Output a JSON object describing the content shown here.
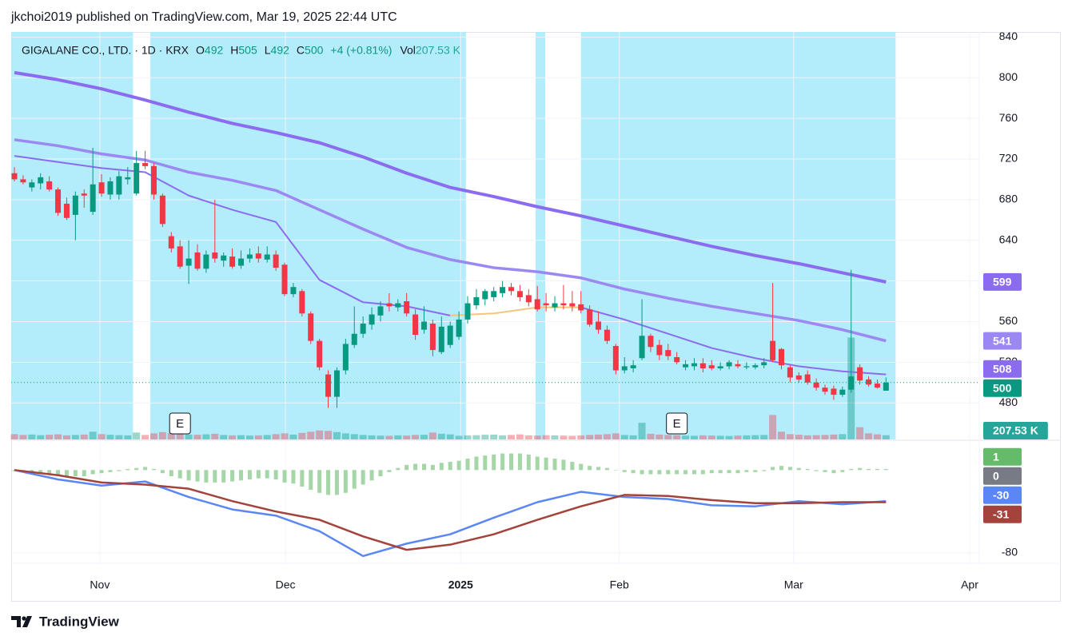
{
  "header": {
    "publisher": "jkchoi2019 published on TradingView.com, Mar 19, 2025 22:44 UTC"
  },
  "chart_data": {
    "type": "candlestick",
    "symbol": "GIGALANE CO., LTD. · 1D · KRX",
    "legend_labels": {
      "open": "O",
      "high": "H",
      "low": "L",
      "close": "C",
      "volume": "Vol"
    },
    "change_label": "+4 (+0.81%)",
    "xlim": [
      -0.37,
      110.7
    ],
    "xticks": [
      {
        "value": 9.8,
        "label": "Nov"
      },
      {
        "value": 31.1,
        "label": "Dec"
      },
      {
        "value": 51.2,
        "label": "2025"
      },
      {
        "value": 69.4,
        "label": "Feb"
      },
      {
        "value": 89.4,
        "label": "Mar"
      },
      {
        "value": 109.6,
        "label": "Apr"
      }
    ],
    "ylim": [
      444,
      845
    ],
    "yticks": [
      480,
      520,
      560,
      600,
      640,
      680,
      720,
      760,
      800,
      840
    ],
    "grid": true,
    "up_color": "#089981",
    "down_color": "#f23645",
    "open": [
      706,
      700,
      692,
      696,
      698,
      690,
      676,
      665,
      686,
      668,
      697,
      685,
      685,
      700,
      686,
      716,
      713,
      684,
      644,
      634,
      615,
      628,
      612,
      628,
      620,
      624,
      615,
      622,
      627,
      621,
      626,
      616,
      587,
      590,
      568,
      541,
      508,
      486,
      512,
      537,
      548,
      557,
      566,
      578,
      574,
      580,
      567,
      552,
      558,
      530,
      537,
      545,
      562,
      576,
      582,
      584,
      588,
      594,
      590,
      586,
      582,
      578,
      574,
      578,
      578,
      577,
      572,
      560,
      552,
      536,
      512,
      514,
      524,
      546,
      537,
      532,
      525,
      515,
      516,
      519,
      517,
      514,
      516,
      518,
      515,
      515,
      517,
      541,
      533,
      515,
      507,
      508,
      500,
      495,
      494,
      488,
      493,
      515,
      503,
      499,
      492
    ],
    "high": [
      712,
      704,
      700,
      706,
      703,
      692,
      682,
      688,
      690,
      731,
      705,
      702,
      708,
      712,
      728,
      728,
      716,
      686,
      648,
      640,
      640,
      636,
      630,
      680,
      628,
      632,
      630,
      632,
      634,
      634,
      630,
      618,
      598,
      592,
      570,
      543,
      512,
      515,
      543,
      575,
      565,
      574,
      580,
      588,
      582,
      588,
      572,
      575,
      562,
      565,
      560,
      570,
      585,
      592,
      592,
      594,
      600,
      598,
      596,
      592,
      595,
      588,
      585,
      596,
      590,
      590,
      576,
      570,
      556,
      538,
      525,
      522,
      582,
      548,
      542,
      538,
      530,
      522,
      524,
      524,
      522,
      520,
      522,
      522,
      520,
      519,
      524,
      598,
      534,
      517,
      510,
      512,
      504,
      498,
      497,
      496,
      611,
      518,
      506,
      503,
      505
    ],
    "low": [
      698,
      695,
      688,
      690,
      688,
      664,
      660,
      640,
      672,
      665,
      683,
      680,
      680,
      695,
      684,
      710,
      680,
      653,
      628,
      612,
      597,
      610,
      608,
      618,
      614,
      612,
      612,
      618,
      618,
      618,
      610,
      585,
      584,
      565,
      538,
      512,
      475,
      475,
      508,
      534,
      544,
      552,
      560,
      570,
      570,
      565,
      542,
      548,
      526,
      528,
      534,
      542,
      558,
      572,
      576,
      580,
      584,
      586,
      580,
      575,
      570,
      570,
      570,
      572,
      570,
      568,
      555,
      548,
      538,
      508,
      509,
      510,
      522,
      530,
      522,
      522,
      518,
      512,
      512,
      510,
      512,
      512,
      513,
      514,
      513,
      513,
      514,
      520,
      513,
      500,
      500,
      498,
      492,
      488,
      483,
      486,
      490,
      498,
      496,
      494,
      492
    ],
    "close": [
      700,
      697,
      697,
      702,
      690,
      667,
      662,
      684,
      684,
      695,
      686,
      698,
      703,
      702,
      716,
      713,
      685,
      656,
      632,
      614,
      622,
      612,
      626,
      622,
      625,
      614,
      622,
      626,
      622,
      626,
      613,
      587,
      594,
      568,
      541,
      515,
      486,
      512,
      538,
      548,
      558,
      567,
      575,
      575,
      578,
      568,
      547,
      560,
      532,
      555,
      556,
      562,
      578,
      584,
      590,
      590,
      594,
      590,
      584,
      579,
      572,
      576,
      578,
      576,
      575,
      571,
      557,
      552,
      541,
      512,
      516,
      517,
      546,
      535,
      527,
      526,
      520,
      518,
      519,
      514,
      514,
      516,
      520,
      516,
      516,
      517,
      520,
      522,
      517,
      505,
      503,
      500,
      495,
      491,
      488,
      493,
      506,
      502,
      498,
      495,
      500
    ],
    "volume": {
      "ylim": [
        0,
        20000
      ],
      "values": [
        260,
        220,
        240,
        210,
        230,
        250,
        200,
        220,
        240,
        380,
        260,
        230,
        210,
        200,
        340,
        220,
        300,
        360,
        320,
        260,
        240,
        230,
        250,
        280,
        220,
        200,
        210,
        190,
        200,
        220,
        260,
        300,
        240,
        320,
        380,
        440,
        420,
        360,
        300,
        260,
        220,
        200,
        190,
        180,
        200,
        190,
        220,
        230,
        340,
        280,
        250,
        180,
        200,
        210,
        230,
        240,
        200,
        220,
        250,
        200,
        190,
        210,
        200,
        190,
        180,
        200,
        220,
        240,
        260,
        300,
        220,
        200,
        820,
        280,
        240,
        220,
        210,
        190,
        180,
        200,
        190,
        180,
        170,
        190,
        200,
        210,
        220,
        1200,
        380,
        260,
        230,
        200,
        210,
        220,
        240,
        260,
        5000,
        600,
        300,
        250,
        207.53
      ],
      "value_labels": [
        null,
        null,
        null,
        null,
        null,
        null,
        null,
        null,
        null,
        null,
        null,
        null,
        null,
        null,
        null,
        null,
        null,
        null,
        null,
        null,
        null,
        null,
        null,
        null,
        null,
        null,
        null,
        null,
        null,
        null,
        null,
        null,
        null,
        null,
        null,
        null,
        null,
        null,
        null,
        null,
        null,
        null,
        null,
        null,
        null,
        null,
        null,
        null,
        null,
        null,
        null,
        null,
        null,
        null,
        null,
        null,
        null,
        null,
        null,
        null,
        null,
        null,
        null,
        null,
        null,
        null,
        null,
        null,
        null,
        null,
        null,
        null,
        null,
        null,
        null,
        null,
        null,
        null,
        null,
        null,
        null,
        null,
        null,
        null,
        null,
        null,
        null,
        null,
        null,
        null,
        null,
        null,
        null,
        null,
        null,
        null,
        null,
        null,
        null,
        null,
        "207.53 K"
      ]
    },
    "highlights": {
      "color": "#b3ecfa",
      "ranges": [
        [
          -0.37,
          13.6
        ],
        [
          15.6,
          51.8
        ],
        [
          59.8,
          60.9
        ],
        [
          65.0,
          101.1
        ]
      ]
    },
    "events": [
      {
        "x": 19,
        "label": "E"
      },
      {
        "x": 76,
        "label": "E"
      }
    ],
    "moving_averages": [
      {
        "color": "#8b6cf0",
        "x": [
          0,
          5,
          10,
          15,
          20,
          25,
          30,
          35,
          40,
          45,
          50,
          55,
          60,
          65,
          70,
          75,
          80,
          85,
          90,
          95,
          100
        ],
        "values": [
          805,
          798,
          789,
          778,
          766,
          755,
          746,
          736,
          722,
          706,
          692,
          683,
          673,
          664,
          654,
          644,
          634,
          625,
          617,
          608,
          599
        ]
      },
      {
        "color": "#9c88f2",
        "x": [
          0,
          5,
          10,
          15,
          20,
          25,
          30,
          35,
          40,
          45,
          50,
          55,
          60,
          65,
          70,
          75,
          80,
          85,
          90,
          95,
          100
        ],
        "values": [
          739,
          733,
          725,
          719,
          707,
          699,
          689,
          670,
          651,
          633,
          621,
          613,
          609,
          603,
          592,
          583,
          575,
          568,
          561,
          552,
          541
        ]
      },
      {
        "color": "#8b6cf0",
        "x": [
          0,
          5,
          10,
          15,
          20,
          25,
          30,
          35,
          40,
          45,
          50,
          55,
          60,
          65,
          70,
          75,
          80,
          85,
          90,
          95,
          100
        ],
        "values": [
          723,
          717,
          711,
          707,
          684,
          670,
          658,
          601,
          579,
          575,
          566,
          null,
          null,
          574,
          562,
          548,
          534,
          524,
          516,
          511,
          508
        ]
      },
      {
        "color": "#f5c57a",
        "x": [
          50,
          55,
          60,
          65
        ],
        "values": [
          566,
          568,
          574,
          574
        ]
      }
    ],
    "macd": {
      "ylim": [
        -90,
        28
      ],
      "yticks": [
        -80
      ],
      "zero": 0,
      "zero_color": "#787b86",
      "histogram": {
        "color": "#a5d6a7",
        "values": [
          -1,
          -2,
          -2,
          -3,
          -4,
          -5,
          -6,
          -6,
          -6,
          -4,
          -3,
          -2,
          -1,
          1,
          2,
          3,
          1,
          -3,
          -6,
          -8,
          -10,
          -11,
          -12,
          -12,
          -12,
          -11,
          -10,
          -9,
          -8,
          -8,
          -9,
          -12,
          -13,
          -16,
          -19,
          -22,
          -24,
          -24,
          -22,
          -18,
          -14,
          -10,
          -6,
          -2,
          2,
          5,
          6,
          6,
          5,
          7,
          8,
          9,
          11,
          13,
          14,
          15,
          16,
          16,
          16,
          15,
          13,
          12,
          11,
          10,
          8,
          6,
          4,
          3,
          2,
          0,
          -2,
          -3,
          -4,
          -4,
          -4,
          -4,
          -4,
          -4,
          -4,
          -4,
          -3,
          -3,
          -3,
          -3,
          -2,
          -2,
          -1,
          3,
          4,
          3,
          2,
          1,
          -1,
          -2,
          -3,
          -2,
          1,
          2,
          1,
          1,
          1
        ]
      },
      "macd": {
        "color": "#5b87f5",
        "x": [
          0,
          5,
          10,
          15,
          20,
          25,
          30,
          35,
          40,
          45,
          50,
          55,
          60,
          65,
          70,
          75,
          80,
          85,
          90,
          95,
          100
        ],
        "values": [
          0,
          -9,
          -15,
          -11,
          -26,
          -38,
          -44,
          -59,
          -83,
          -71,
          -62,
          -46,
          -31,
          -21,
          -26,
          -28,
          -34,
          -35,
          -30,
          -33,
          -30
        ]
      },
      "signal": {
        "color": "#a3433b",
        "x": [
          0,
          5,
          10,
          15,
          20,
          25,
          30,
          35,
          40,
          45,
          50,
          55,
          60,
          65,
          70,
          75,
          80,
          85,
          90,
          95,
          100
        ],
        "values": [
          0,
          -5,
          -12,
          -14,
          -18,
          -30,
          -40,
          -48,
          -64,
          -77,
          -72,
          -62,
          -48,
          -35,
          -24,
          -25,
          -29,
          -32,
          -32,
          -31,
          -31
        ]
      }
    }
  },
  "footer": {
    "brand": "TradingView"
  }
}
